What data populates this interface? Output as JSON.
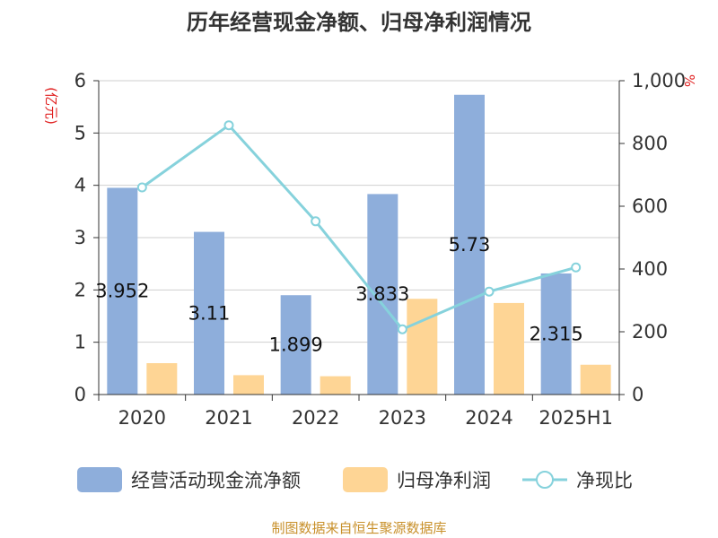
{
  "chart_data": {
    "type": "bar",
    "title": "历年经营现金净额、归母净利润情况",
    "categories": [
      "2020",
      "2021",
      "2022",
      "2023",
      "2024",
      "2025H1"
    ],
    "y_left": {
      "unit": "(亿元)",
      "range": [
        0,
        6
      ],
      "ticks": [
        "0",
        "1",
        "2",
        "3",
        "4",
        "5",
        "6"
      ]
    },
    "y_right": {
      "unit": "%",
      "range": [
        0,
        1000
      ],
      "ticks": [
        "0",
        "200",
        "400",
        "600",
        "800",
        "1,000"
      ]
    },
    "series": [
      {
        "name": "经营活动现金流净额",
        "type": "bar",
        "axis": "left",
        "color": "#8eaedb",
        "values": [
          3.952,
          3.11,
          1.899,
          3.833,
          5.73,
          2.315
        ],
        "labels": [
          "3.952",
          "3.11",
          "1.899",
          "3.833",
          "5.73",
          "2.315"
        ]
      },
      {
        "name": "归母净利润",
        "type": "bar",
        "axis": "left",
        "color": "#fed595",
        "values": [
          0.6,
          0.37,
          0.35,
          1.83,
          1.75,
          0.57
        ]
      },
      {
        "name": "净现比",
        "type": "line",
        "axis": "right",
        "color": "#86d2dc",
        "values": [
          660,
          858,
          552,
          208,
          328,
          405
        ]
      }
    ],
    "grid": true,
    "legend": "bottom",
    "source": "制图数据来自恒生聚源数据库"
  }
}
